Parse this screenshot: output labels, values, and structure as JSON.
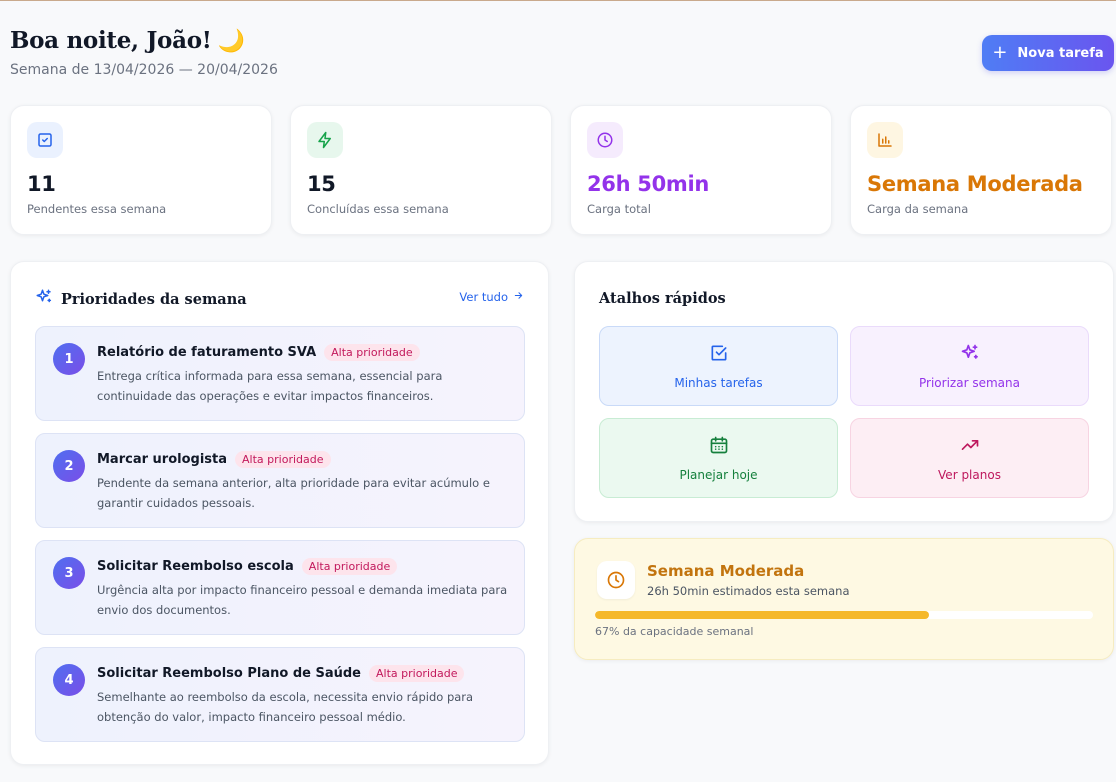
{
  "header": {
    "greeting": "Boa noite, João!",
    "greeting_emoji": "🌙",
    "week_range": "Semana de 13/04/2026 — 20/04/2026",
    "new_task_label": "Nova tarefa"
  },
  "stats": [
    {
      "icon": "checkbox-icon",
      "value": "11",
      "label": "Pendentes essa semana",
      "color": "#2563eb",
      "bg": "#eaf1fe"
    },
    {
      "icon": "lightning-icon",
      "value": "15",
      "label": "Concluídas essa semana",
      "color": "#16a34a",
      "bg": "#e7f7ed"
    },
    {
      "icon": "clock-icon",
      "value": "26h 50min",
      "label": "Carga total",
      "color": "#9333ea",
      "bg": "#f5ebfd"
    },
    {
      "icon": "bar-chart-icon",
      "value": "Semana Moderada",
      "label": "Carga da semana",
      "color": "#d97706",
      "bg": "#fef6e2"
    }
  ],
  "priorities": {
    "title": "Prioridades da semana",
    "see_all": "Ver tudo",
    "items": [
      {
        "number": "1",
        "title": "Relatório de faturamento SVA",
        "badge": "Alta prioridade",
        "description": "Entrega crítica informada para essa semana, essencial para continuidade das operações e evitar impactos financeiros."
      },
      {
        "number": "2",
        "title": "Marcar urologista",
        "badge": "Alta prioridade",
        "description": "Pendente da semana anterior, alta prioridade para evitar acúmulo e garantir cuidados pessoais."
      },
      {
        "number": "3",
        "title": "Solicitar Reembolso escola",
        "badge": "Alta prioridade",
        "description": "Urgência alta por impacto financeiro pessoal e demanda imediata para envio dos documentos."
      },
      {
        "number": "4",
        "title": "Solicitar Reembolso Plano de Saúde",
        "badge": "Alta prioridade",
        "description": "Semelhante ao reembolso da escola, necessita envio rápido para obtenção do valor, impacto financeiro pessoal médio."
      }
    ]
  },
  "shortcuts": {
    "title": "Atalhos rápidos",
    "items": [
      {
        "label": "Minhas tarefas",
        "icon": "checkbox-icon",
        "color": "#2563eb",
        "bg": "#edf3fe",
        "border": "#c9daf8"
      },
      {
        "label": "Priorizar semana",
        "icon": "sparkles-icon",
        "color": "#9333ea",
        "bg": "#f8f1fe",
        "border": "#eadbfb"
      },
      {
        "label": "Planejar hoje",
        "icon": "calendar-icon",
        "color": "#15803d",
        "bg": "#ebf9f0",
        "border": "#c8ecd4"
      },
      {
        "label": "Ver planos",
        "icon": "trending-up-icon",
        "color": "#be185d",
        "bg": "#fdeef4",
        "border": "#f7d4e2"
      }
    ]
  },
  "weekload": {
    "title": "Semana Moderada",
    "subtitle": "26h 50min estimados esta semana",
    "progress": 0.67,
    "capacity_text": "67% da capacidade semanal",
    "color": "#d97706"
  }
}
